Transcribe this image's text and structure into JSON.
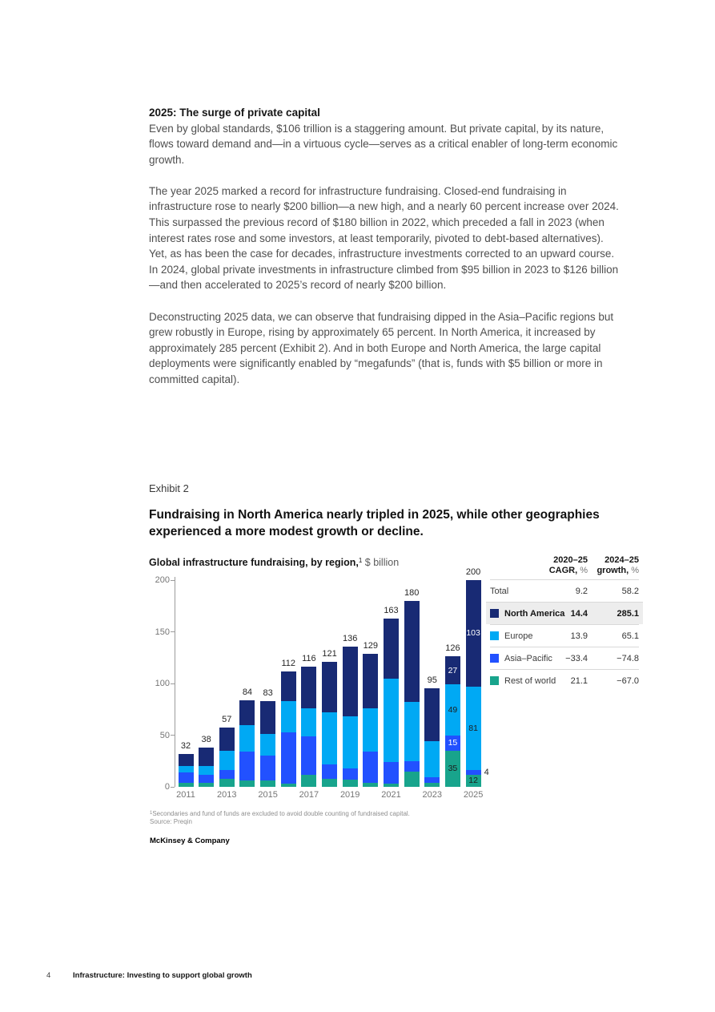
{
  "article": {
    "heading": "2025: The surge of private capital",
    "paragraphs": [
      "Even by global standards, $106 trillion is a staggering amount. But private capital, by its nature, flows toward demand and—in a virtuous cycle—serves as a critical enabler of long-term economic growth.",
      "The year 2025 marked a record for infrastructure fundraising. Closed-end fundraising in infrastructure rose to nearly $200 billion—a new high, and a nearly 60 percent increase over 2024. This surpassed the previous record of $180 billion in 2022, which preceded a fall in 2023 (when interest rates rose and some investors, at least temporarily, pivoted to debt-based alternatives). Yet, as has been the case for decades, infrastructure investments corrected to an upward course. In 2024, global private investments in infrastructure climbed from $95 billion in 2023 to $126 billion—and then accelerated to 2025’s record of nearly $200 billion.",
      "Deconstructing 2025 data, we can observe that fundraising dipped in the Asia–Pacific regions but grew robustly in Europe, rising by approximately 65 percent. In North America, it increased by approximately 285 percent (Exhibit 2). And in both Europe and North America, the large capital deployments were significantly enabled by “megafunds” (that is, funds with $5 billion or more in committed capital)."
    ]
  },
  "exhibit": {
    "label": "Exhibit 2",
    "title": "Fundraising in North America nearly tripled in 2025, while other geographies\nexperienced a more modest growth or decline.",
    "subtitle_bold": "Global infrastructure fundraising, by region,",
    "subtitle_superscript": "1",
    "subtitle_unit": " $ billion",
    "table": {
      "col1_header": "2020–25\nCAGR, ",
      "col2_header": "2024–25\ngrowth, ",
      "pct_sign": "%",
      "rows": [
        {
          "label": "Total",
          "swatch": null,
          "cagr": "9.2",
          "growth": "58.2",
          "highlight": false
        },
        {
          "label": "North America",
          "swatch": "north_america",
          "cagr": "14.4",
          "growth": "285.1",
          "highlight": true
        },
        {
          "label": "Europe",
          "swatch": "europe",
          "cagr": "13.9",
          "growth": "65.1",
          "highlight": false
        },
        {
          "label": "Asia–Pacific",
          "swatch": "asia_pacific",
          "cagr": "−33.4",
          "growth": "−74.8",
          "highlight": false
        },
        {
          "label": "Rest of world",
          "swatch": "rest_of_world",
          "cagr": "21.1",
          "growth": "−67.0",
          "highlight": false
        }
      ]
    },
    "footnote_superscript": "1",
    "footnote": "Secondaries and fund of funds are excluded to avoid double counting of fundraised capital.",
    "source": "Source: Preqin",
    "brand": "McKinsey & Company"
  },
  "chart_data": {
    "type": "bar",
    "stacked": true,
    "title": "Global infrastructure fundraising, by region, $ billion",
    "ylabel": "$ billion",
    "ylim": [
      0,
      200
    ],
    "yticks": [
      0,
      50,
      100,
      150,
      200
    ],
    "x": [
      2011,
      2012,
      2013,
      2014,
      2015,
      2016,
      2017,
      2018,
      2019,
      2020,
      2021,
      2022,
      2023,
      2024,
      2025
    ],
    "x_tick_labels": [
      "2011",
      "2013",
      "2015",
      "2017",
      "2019",
      "2021",
      "2023",
      "2025"
    ],
    "series": [
      {
        "name": "Rest of world",
        "color_key": "rest_of_world",
        "values": [
          4,
          4,
          8,
          6,
          6,
          3,
          12,
          8,
          7,
          4,
          3,
          15,
          4,
          35,
          12
        ]
      },
      {
        "name": "Asia–Pacific",
        "color_key": "asia_pacific",
        "values": [
          10,
          8,
          8,
          28,
          24,
          50,
          37,
          14,
          11,
          30,
          21,
          10,
          5,
          15,
          4
        ]
      },
      {
        "name": "Europe",
        "color_key": "europe",
        "values": [
          6,
          8,
          19,
          26,
          21,
          30,
          27,
          50,
          50,
          42,
          81,
          57,
          35,
          49,
          81
        ]
      },
      {
        "name": "North America",
        "color_key": "north_america",
        "values": [
          12,
          18,
          22,
          24,
          32,
          29,
          40,
          49,
          68,
          53,
          58,
          98,
          51,
          27,
          103
        ]
      }
    ],
    "totals": [
      32,
      38,
      57,
      84,
      83,
      112,
      116,
      121,
      136,
      129,
      163,
      180,
      95,
      126,
      200
    ],
    "label_segments_for_x": [
      2024,
      2025
    ],
    "legend_position": "right-table",
    "grid": false
  },
  "colors": {
    "north_america": "#182a74",
    "europe": "#00a9f4",
    "asia_pacific": "#2251ff",
    "rest_of_world": "#18a48c",
    "dark_label": "#1d1d1d",
    "light_label": "#ffffff"
  },
  "footer": {
    "page_number": "4",
    "text": "Infrastructure: Investing to support global growth"
  }
}
